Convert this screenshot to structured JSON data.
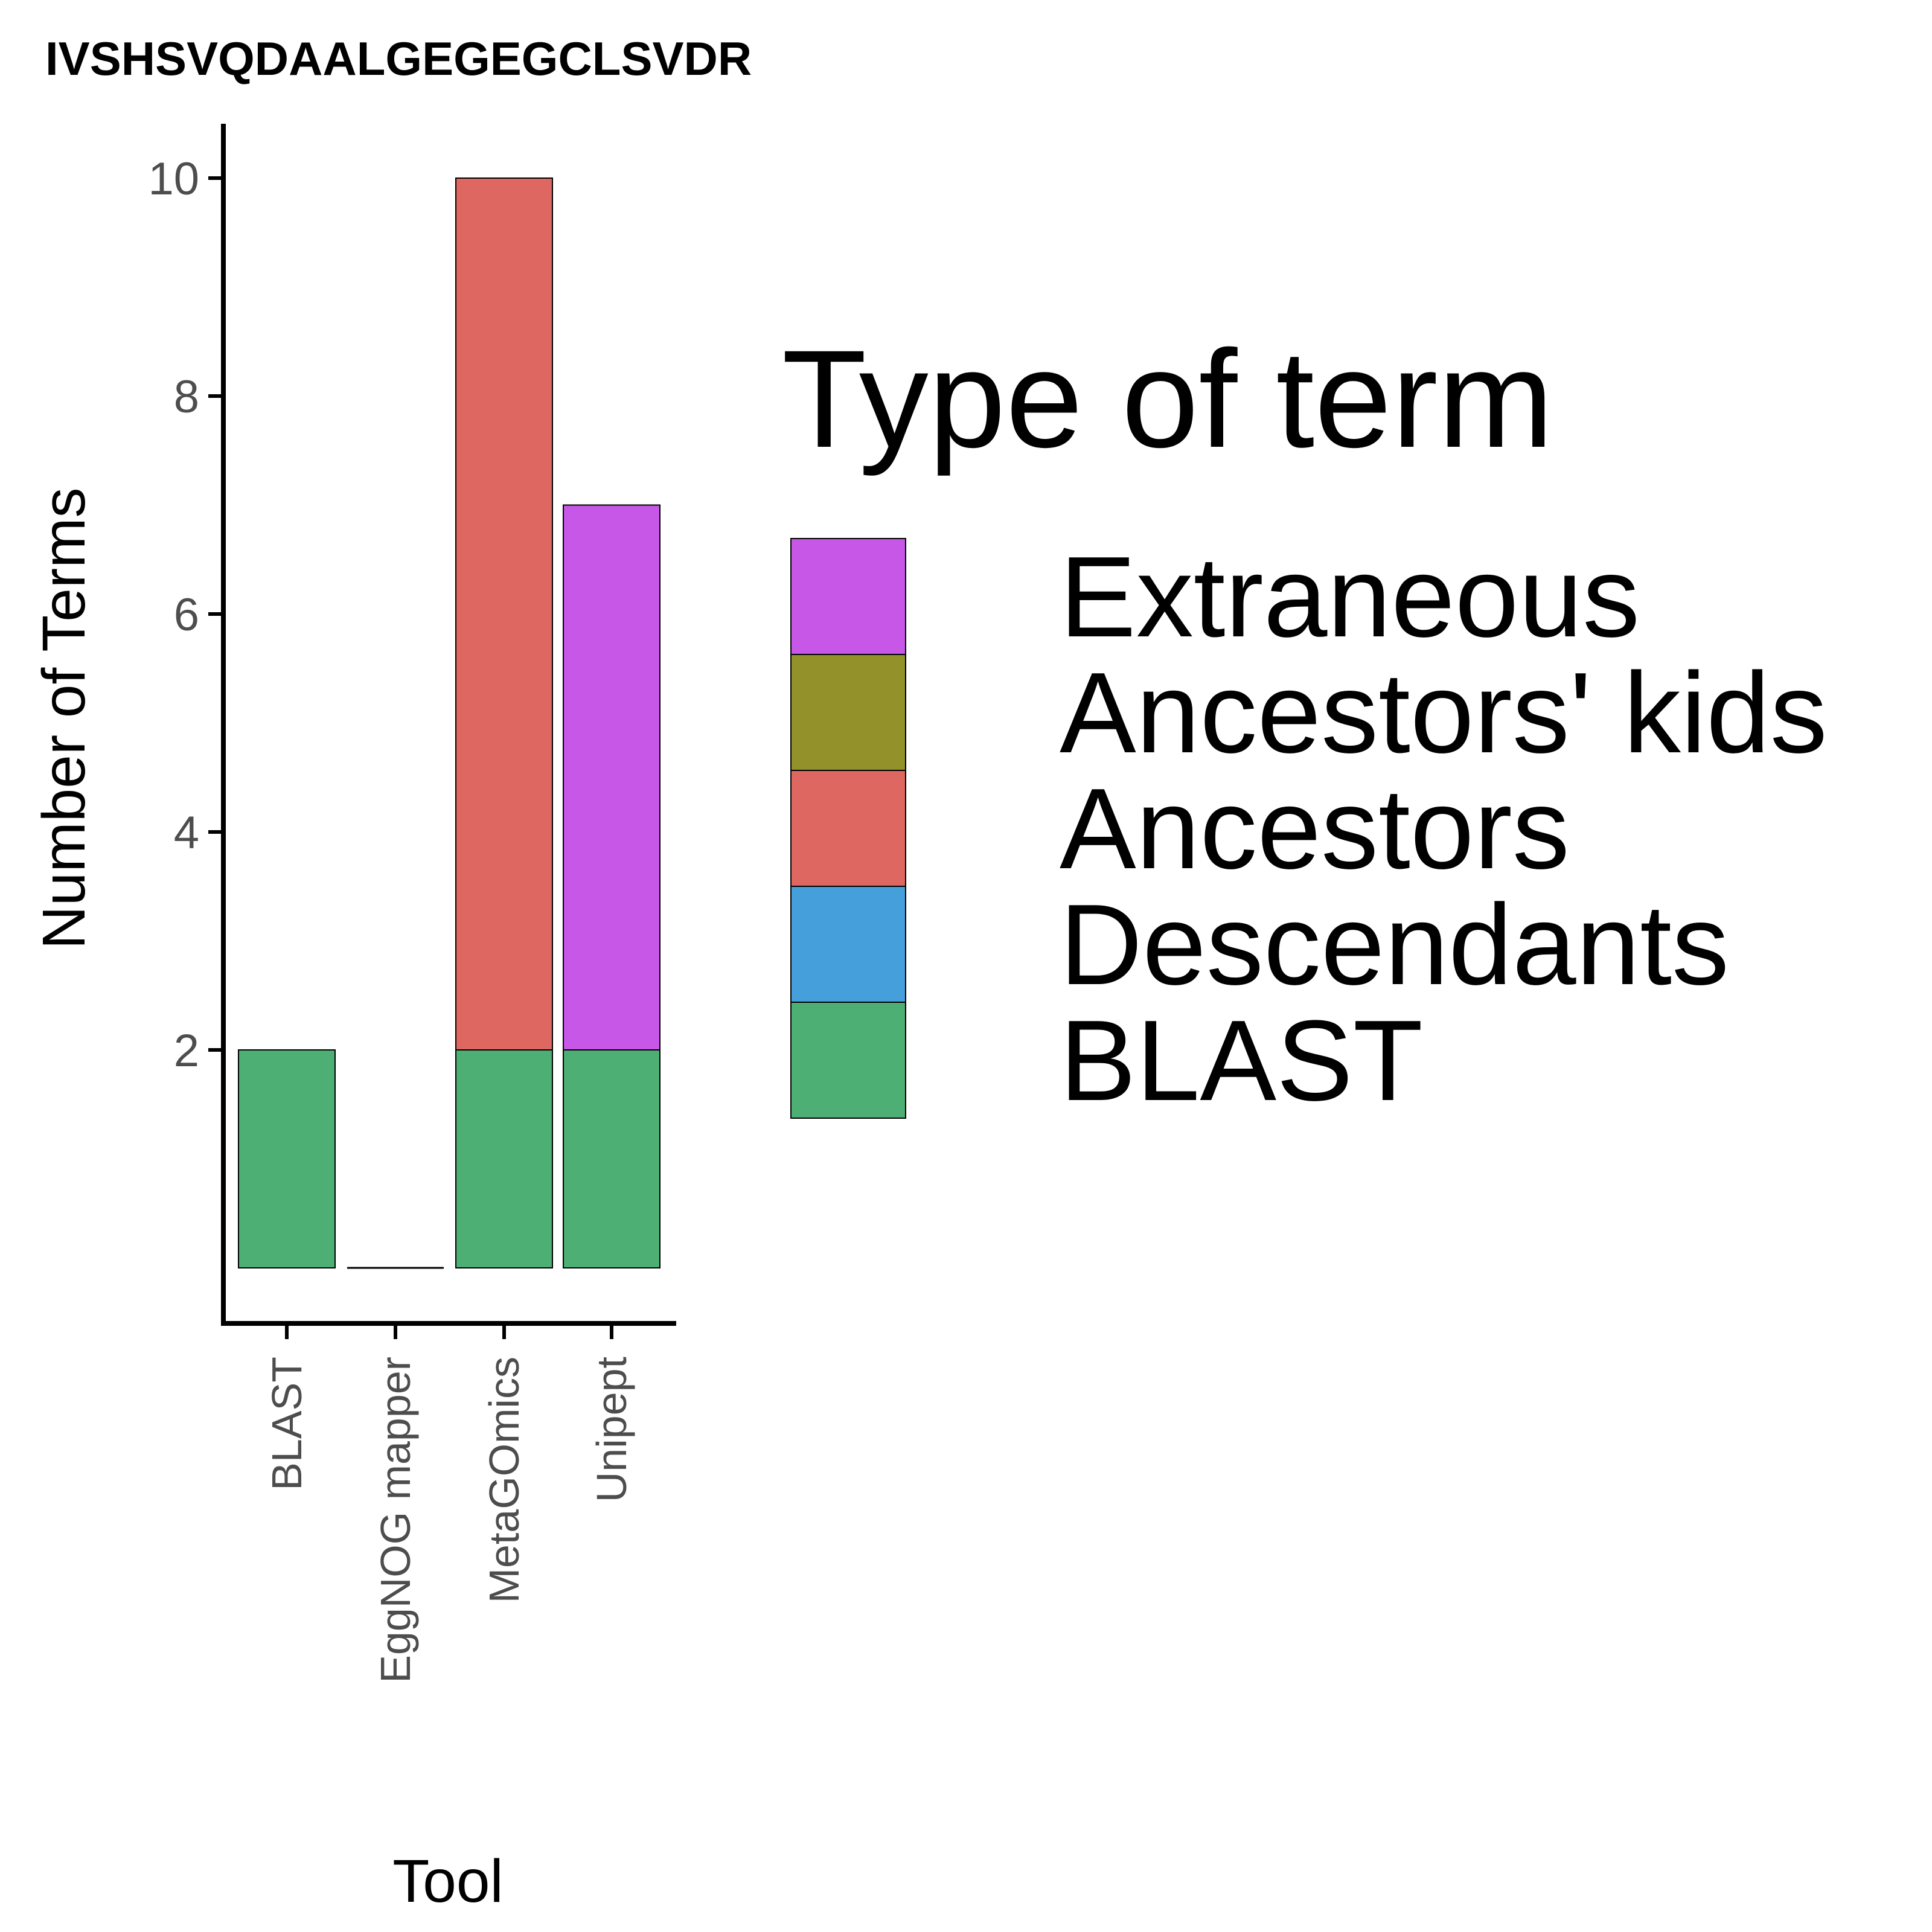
{
  "chart_data": {
    "type": "bar",
    "stacked": true,
    "title": "IVSHSVQDAALGEGEGCLSVDR",
    "xlabel": "Tool",
    "ylabel": "Number of Terms",
    "categories": [
      "BLAST",
      "EggNOG mapper",
      "MetaGOmics",
      "Unipept"
    ],
    "ylim": [
      0,
      10.5
    ],
    "yticks": [
      2,
      4,
      6,
      8,
      10
    ],
    "grid": false,
    "series": [
      {
        "name": "BLAST",
        "color": "#4daf74",
        "values": [
          2,
          0,
          2,
          2
        ]
      },
      {
        "name": "Descendants",
        "color": "#449fdb",
        "values": [
          0,
          0,
          0,
          0
        ]
      },
      {
        "name": "Ancestors",
        "color": "#de6761",
        "values": [
          0,
          0,
          8,
          0
        ]
      },
      {
        "name": "Ancestors' kids",
        "color": "#93922a",
        "values": [
          0,
          0,
          0,
          0
        ]
      },
      {
        "name": "Extraneous",
        "color": "#c757e7",
        "values": [
          0,
          0,
          0,
          5
        ]
      }
    ],
    "legend": {
      "title": "Type of term",
      "position": "right",
      "entries": [
        "Extraneous",
        "Ancestors' kids",
        "Ancestors",
        "Descendants",
        "BLAST"
      ]
    }
  }
}
